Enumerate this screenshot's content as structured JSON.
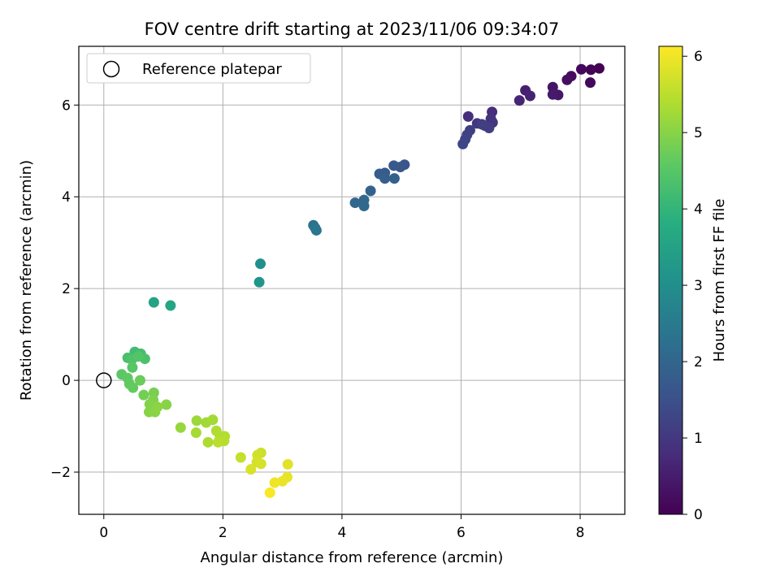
{
  "chart_data": {
    "type": "scatter",
    "title": "FOV centre drift starting at 2023/11/06 09:34:07",
    "xlabel": "Angular distance from reference (arcmin)",
    "ylabel": "Rotation from reference (arcmin)",
    "xlim": [
      -0.42,
      8.75
    ],
    "ylim": [
      -2.92,
      7.28
    ],
    "xticks": [
      0,
      2,
      4,
      6,
      8
    ],
    "yticks": [
      -2,
      0,
      2,
      4,
      6
    ],
    "xtick_labels": [
      "0",
      "2",
      "4",
      "6",
      "8"
    ],
    "ytick_labels": [
      "−2",
      "0",
      "2",
      "4",
      "6"
    ],
    "grid": true,
    "legend": {
      "position": "top-left",
      "label": "Reference platepar"
    },
    "colormap": "viridis",
    "colorbar": {
      "label": "Hours from first FF file",
      "range": [
        0,
        6.13
      ],
      "ticks": [
        0,
        1,
        2,
        3,
        4,
        5,
        6
      ],
      "tick_labels": [
        "0",
        "1",
        "2",
        "3",
        "4",
        "5",
        "6"
      ]
    },
    "reference_point": {
      "x": 0,
      "y": 0
    },
    "points": [
      {
        "x": 8.32,
        "y": 6.8,
        "c": 0.0
      },
      {
        "x": 8.18,
        "y": 6.77,
        "c": 0.05
      },
      {
        "x": 8.02,
        "y": 6.78,
        "c": 0.1
      },
      {
        "x": 8.17,
        "y": 6.49,
        "c": 0.15
      },
      {
        "x": 7.85,
        "y": 6.63,
        "c": 0.2
      },
      {
        "x": 7.78,
        "y": 6.55,
        "c": 0.25
      },
      {
        "x": 7.54,
        "y": 6.39,
        "c": 0.35
      },
      {
        "x": 7.63,
        "y": 6.22,
        "c": 0.4
      },
      {
        "x": 7.54,
        "y": 6.23,
        "c": 0.45
      },
      {
        "x": 7.08,
        "y": 6.32,
        "c": 0.55
      },
      {
        "x": 7.16,
        "y": 6.2,
        "c": 0.6
      },
      {
        "x": 6.98,
        "y": 6.1,
        "c": 0.65
      },
      {
        "x": 6.52,
        "y": 5.85,
        "c": 0.8
      },
      {
        "x": 6.12,
        "y": 5.75,
        "c": 0.85
      },
      {
        "x": 6.5,
        "y": 5.7,
        "c": 0.9
      },
      {
        "x": 6.53,
        "y": 5.62,
        "c": 0.95
      },
      {
        "x": 6.27,
        "y": 5.6,
        "c": 1.0
      },
      {
        "x": 6.4,
        "y": 5.55,
        "c": 1.05
      },
      {
        "x": 6.47,
        "y": 5.5,
        "c": 1.1
      },
      {
        "x": 6.15,
        "y": 5.45,
        "c": 1.15
      },
      {
        "x": 6.1,
        "y": 5.35,
        "c": 1.2
      },
      {
        "x": 6.07,
        "y": 5.25,
        "c": 1.25
      },
      {
        "x": 6.03,
        "y": 5.15,
        "c": 1.3
      },
      {
        "x": 6.35,
        "y": 5.58,
        "c": 1.12
      },
      {
        "x": 5.05,
        "y": 4.7,
        "c": 1.6
      },
      {
        "x": 4.98,
        "y": 4.65,
        "c": 1.65
      },
      {
        "x": 4.87,
        "y": 4.68,
        "c": 1.7
      },
      {
        "x": 4.72,
        "y": 4.52,
        "c": 1.75
      },
      {
        "x": 4.63,
        "y": 4.5,
        "c": 1.8
      },
      {
        "x": 4.72,
        "y": 4.4,
        "c": 1.85
      },
      {
        "x": 4.88,
        "y": 4.4,
        "c": 1.88
      },
      {
        "x": 4.48,
        "y": 4.13,
        "c": 1.95
      },
      {
        "x": 4.22,
        "y": 3.87,
        "c": 2.0
      },
      {
        "x": 4.37,
        "y": 3.8,
        "c": 2.05
      },
      {
        "x": 4.37,
        "y": 3.93,
        "c": 2.08
      },
      {
        "x": 3.52,
        "y": 3.38,
        "c": 2.3
      },
      {
        "x": 3.55,
        "y": 3.32,
        "c": 2.35
      },
      {
        "x": 3.57,
        "y": 3.27,
        "c": 2.4
      },
      {
        "x": 2.63,
        "y": 2.54,
        "c": 3.05
      },
      {
        "x": 2.61,
        "y": 2.14,
        "c": 3.15
      },
      {
        "x": 0.84,
        "y": 1.7,
        "c": 3.55
      },
      {
        "x": 1.12,
        "y": 1.63,
        "c": 3.6
      },
      {
        "x": 0.52,
        "y": 0.62,
        "c": 4.2
      },
      {
        "x": 0.62,
        "y": 0.58,
        "c": 4.25
      },
      {
        "x": 0.4,
        "y": 0.49,
        "c": 4.3
      },
      {
        "x": 0.69,
        "y": 0.47,
        "c": 4.35
      },
      {
        "x": 0.47,
        "y": 0.45,
        "c": 4.4
      },
      {
        "x": 0.58,
        "y": 0.52,
        "c": 4.45
      },
      {
        "x": 0.48,
        "y": 0.28,
        "c": 4.5
      },
      {
        "x": 0.3,
        "y": 0.13,
        "c": 4.55
      },
      {
        "x": 0.4,
        "y": 0.05,
        "c": 4.6
      },
      {
        "x": 0.43,
        "y": -0.08,
        "c": 4.62
      },
      {
        "x": 0.49,
        "y": -0.16,
        "c": 4.65
      },
      {
        "x": 0.61,
        "y": 0.0,
        "c": 4.7
      },
      {
        "x": 0.67,
        "y": -0.32,
        "c": 4.8
      },
      {
        "x": 0.84,
        "y": -0.27,
        "c": 4.85
      },
      {
        "x": 0.83,
        "y": -0.43,
        "c": 4.9
      },
      {
        "x": 0.77,
        "y": -0.52,
        "c": 4.95
      },
      {
        "x": 1.05,
        "y": -0.53,
        "c": 5.0
      },
      {
        "x": 0.76,
        "y": -0.69,
        "c": 5.0
      },
      {
        "x": 0.86,
        "y": -0.69,
        "c": 5.02
      },
      {
        "x": 0.9,
        "y": -0.58,
        "c": 5.05
      },
      {
        "x": 1.29,
        "y": -1.03,
        "c": 5.15
      },
      {
        "x": 1.56,
        "y": -0.88,
        "c": 5.2
      },
      {
        "x": 1.72,
        "y": -0.92,
        "c": 5.25
      },
      {
        "x": 1.83,
        "y": -0.86,
        "c": 5.28
      },
      {
        "x": 1.55,
        "y": -1.14,
        "c": 5.3
      },
      {
        "x": 1.75,
        "y": -1.35,
        "c": 5.35
      },
      {
        "x": 1.89,
        "y": -1.1,
        "c": 5.38
      },
      {
        "x": 1.95,
        "y": -1.22,
        "c": 5.4
      },
      {
        "x": 2.03,
        "y": -1.22,
        "c": 5.42
      },
      {
        "x": 2.02,
        "y": -1.32,
        "c": 5.45
      },
      {
        "x": 1.92,
        "y": -1.35,
        "c": 5.48
      },
      {
        "x": 2.3,
        "y": -1.68,
        "c": 5.6
      },
      {
        "x": 2.64,
        "y": -1.58,
        "c": 5.65
      },
      {
        "x": 2.58,
        "y": -1.63,
        "c": 5.7
      },
      {
        "x": 2.57,
        "y": -1.78,
        "c": 5.72
      },
      {
        "x": 2.64,
        "y": -1.82,
        "c": 5.75
      },
      {
        "x": 2.47,
        "y": -1.94,
        "c": 5.78
      },
      {
        "x": 3.09,
        "y": -1.83,
        "c": 5.85
      },
      {
        "x": 3.08,
        "y": -2.11,
        "c": 5.9
      },
      {
        "x": 3.0,
        "y": -2.2,
        "c": 5.95
      },
      {
        "x": 2.87,
        "y": -2.23,
        "c": 6.0
      },
      {
        "x": 2.79,
        "y": -2.45,
        "c": 6.1
      }
    ]
  }
}
